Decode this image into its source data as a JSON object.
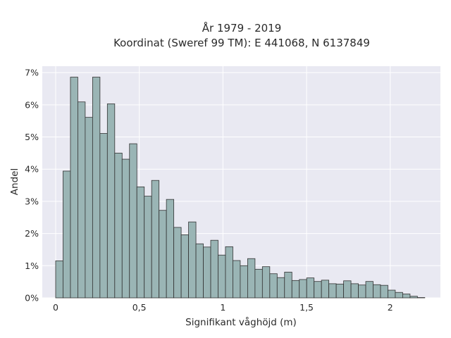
{
  "chart_data": {
    "type": "bar",
    "title": "År 1979 - 2019",
    "subtitle": "Koordinat (Sweref 99 TM): E 441068, N 6137849",
    "xlabel": "Signifikant våghöjd (m)",
    "ylabel": "Andel",
    "xlim": [
      -0.08,
      2.3
    ],
    "ylim": [
      0,
      7.2
    ],
    "bin_width": 0.04413,
    "x_ticks": [
      0,
      0.5,
      1,
      1.5,
      2
    ],
    "x_tick_labels": [
      "0",
      "0,5",
      "1",
      "1,5",
      "2"
    ],
    "y_ticks": [
      0,
      1,
      2,
      3,
      4,
      5,
      6,
      7
    ],
    "y_tick_labels": [
      "0%",
      "1%",
      "2%",
      "3%",
      "4%",
      "5%",
      "6%",
      "7%"
    ],
    "bin_starts": [
      0.0,
      0.0441,
      0.0883,
      0.1324,
      0.1765,
      0.2207,
      0.2648,
      0.3089,
      0.3531,
      0.3972,
      0.4413,
      0.4855,
      0.5296,
      0.5737,
      0.6179,
      0.662,
      0.7061,
      0.7503,
      0.7944,
      0.8385,
      0.8827,
      0.9268,
      0.9709,
      1.0151,
      1.0592,
      1.1033,
      1.1475,
      1.1916,
      1.2357,
      1.2799,
      1.324,
      1.3681,
      1.4123,
      1.4564,
      1.5005,
      1.5447,
      1.5888,
      1.6329,
      1.6771,
      1.7212,
      1.7653,
      1.8095,
      1.8536,
      1.8977,
      1.9419,
      1.986,
      2.0301,
      2.0743,
      2.1184,
      2.1625
    ],
    "values": [
      1.15,
      3.94,
      6.86,
      6.09,
      5.61,
      6.86,
      5.11,
      6.03,
      4.5,
      4.31,
      4.79,
      3.45,
      3.16,
      3.65,
      2.72,
      3.06,
      2.19,
      1.96,
      2.36,
      1.68,
      1.58,
      1.79,
      1.33,
      1.59,
      1.16,
      1.0,
      1.22,
      0.89,
      0.97,
      0.75,
      0.63,
      0.8,
      0.54,
      0.57,
      0.62,
      0.51,
      0.55,
      0.44,
      0.43,
      0.53,
      0.44,
      0.4,
      0.51,
      0.41,
      0.39,
      0.24,
      0.17,
      0.12,
      0.05,
      0.01
    ],
    "grid": true,
    "colors": {
      "plot_background": "#e9e9f2",
      "grid": "#ffffff",
      "bar_fill": "#9ab5b5",
      "bar_edge": "#333333",
      "text": "#2a2a2a"
    }
  }
}
